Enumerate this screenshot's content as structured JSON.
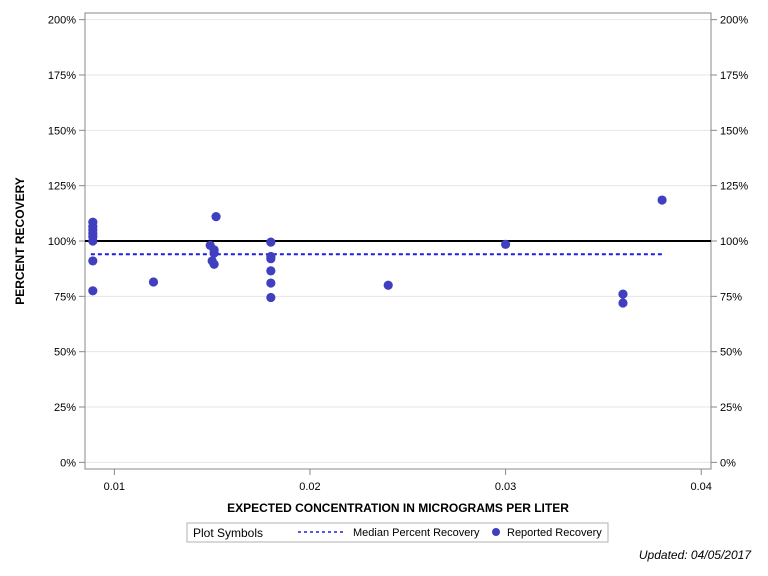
{
  "chart_data": {
    "type": "scatter",
    "xlabel": "EXPECTED CONCENTRATION IN MICROGRAMS PER LITER",
    "ylabel": "PERCENT RECOVERY",
    "xlim": [
      0.0085,
      0.0405
    ],
    "ylim": [
      -3,
      203
    ],
    "x_ticks": [
      0.01,
      0.02,
      0.03,
      0.04
    ],
    "x_tick_labels": [
      "0.01",
      "0.02",
      "0.03",
      "0.04"
    ],
    "y_ticks": [
      0,
      25,
      50,
      75,
      100,
      125,
      150,
      175,
      200
    ],
    "y_tick_labels": [
      "0%",
      "25%",
      "50%",
      "75%",
      "100%",
      "125%",
      "150%",
      "175%",
      "200%"
    ],
    "grid": "horizontal",
    "reference_line": 100,
    "median": {
      "name": "Median Percent Recovery",
      "value": 94,
      "x_range": [
        0.0088,
        0.038
      ]
    },
    "series": [
      {
        "name": "Reported Recovery",
        "points": [
          [
            0.0089,
            108.5
          ],
          [
            0.0089,
            106.5
          ],
          [
            0.0089,
            105
          ],
          [
            0.0089,
            103.5
          ],
          [
            0.0089,
            102
          ],
          [
            0.0089,
            100
          ],
          [
            0.0089,
            91
          ],
          [
            0.0089,
            77.5
          ],
          [
            0.012,
            81.5
          ],
          [
            0.0149,
            98
          ],
          [
            0.015,
            91
          ],
          [
            0.0151,
            96
          ],
          [
            0.0151,
            94.5
          ],
          [
            0.0151,
            89.5
          ],
          [
            0.0152,
            111
          ],
          [
            0.018,
            99.5
          ],
          [
            0.018,
            93
          ],
          [
            0.018,
            92
          ],
          [
            0.018,
            86.5
          ],
          [
            0.018,
            81
          ],
          [
            0.018,
            74.5
          ],
          [
            0.024,
            80
          ],
          [
            0.03,
            98.5
          ],
          [
            0.036,
            76
          ],
          [
            0.036,
            72
          ],
          [
            0.038,
            118.5
          ]
        ]
      }
    ],
    "legend": {
      "title": "Plot Symbols",
      "items": [
        "Median Percent Recovery",
        "Reported Recovery"
      ],
      "placement": "bottom"
    },
    "colors": {
      "points": "#3f3fbf",
      "median": "#1f1fdf",
      "reference": "#000000",
      "grid": "#e6e6e6"
    }
  },
  "footer": {
    "updated": "Updated: 04/05/2017"
  }
}
